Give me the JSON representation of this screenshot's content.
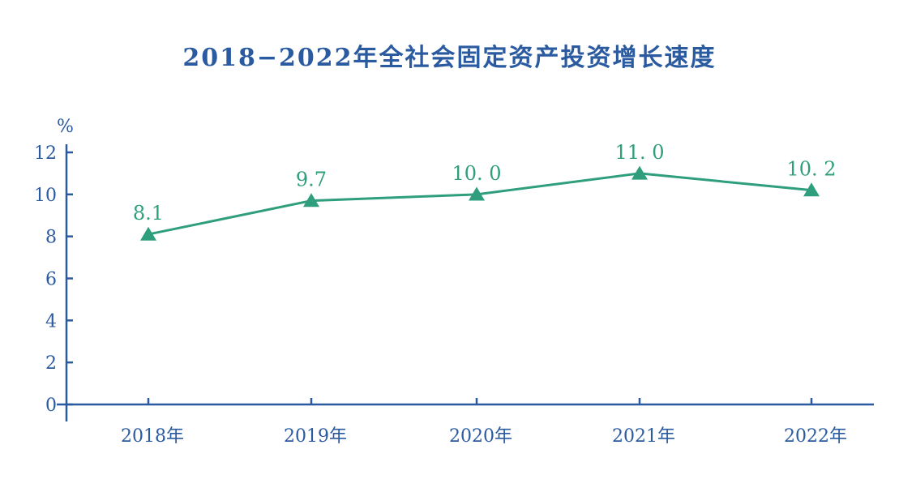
{
  "chart_data": {
    "type": "line",
    "title": "2018−2022年全社会固定资产投资增长速度",
    "ylabel": "%",
    "xlabel": "",
    "categories": [
      "2018年",
      "2019年",
      "2020年",
      "2021年",
      "2022年"
    ],
    "series": [
      {
        "values": [
          8.1,
          9.7,
          10.0,
          11.0,
          10.2
        ],
        "labels": [
          "8.1",
          "9.7",
          "10. 0",
          "11. 0",
          "10. 2"
        ]
      }
    ],
    "ylim": [
      0,
      12
    ],
    "yticks": [
      "0",
      "2",
      "4",
      "6",
      "8",
      "10",
      "12"
    ],
    "grid": false,
    "marker": "triangle",
    "colors": {
      "axis": "#2a5aa0",
      "series": "#2f9e7c",
      "title": "#2a5aa0"
    }
  }
}
